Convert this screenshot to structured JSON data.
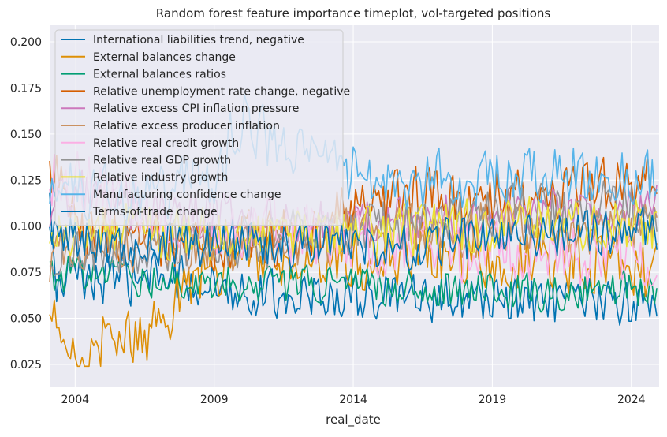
{
  "chart_data": {
    "type": "line",
    "title": "Random forest feature importance timeplot, vol-targeted positions",
    "xlabel": "real_date",
    "ylabel": "",
    "xlim": [
      "2003-02-01",
      "2024-12-31"
    ],
    "ylim": [
      0.013,
      0.209
    ],
    "x_ticks": [
      "2004-01-01",
      "2009-01-01",
      "2014-01-01",
      "2019-01-01",
      "2024-01-01"
    ],
    "x_tick_labels": [
      "2004",
      "2009",
      "2014",
      "2019",
      "2024"
    ],
    "y_ticks": [
      0.025,
      0.05,
      0.075,
      0.1,
      0.125,
      0.15,
      0.175,
      0.2
    ],
    "y_tick_labels": [
      "0.025",
      "0.050",
      "0.075",
      "0.100",
      "0.125",
      "0.150",
      "0.175",
      "0.200"
    ],
    "grid": true,
    "legend_position": "upper-left",
    "x_start": "2003-02",
    "x_frequency": "monthly",
    "series": [
      {
        "name": "International liabilities trend, negative",
        "color": "#0173b2",
        "anchors": [
          [
            2003.1,
            0.117
          ],
          [
            2003.3,
            0.065
          ],
          [
            2004,
            0.075
          ],
          [
            2005,
            0.07
          ],
          [
            2007,
            0.072
          ],
          [
            2009,
            0.068
          ],
          [
            2011,
            0.063
          ],
          [
            2014,
            0.062
          ],
          [
            2016,
            0.06
          ],
          [
            2019,
            0.06
          ],
          [
            2021,
            0.058
          ],
          [
            2023,
            0.058
          ],
          [
            2025,
            0.058
          ]
        ],
        "noise": 0.009,
        "max": 0.118
      },
      {
        "name": "External balances change",
        "color": "#de8f05",
        "anchors": [
          [
            2003.1,
            0.04
          ],
          [
            2003.3,
            0.05
          ],
          [
            2003.5,
            0.036
          ],
          [
            2004,
            0.025
          ],
          [
            2004.5,
            0.03
          ],
          [
            2005,
            0.04
          ],
          [
            2006,
            0.038
          ],
          [
            2007,
            0.046
          ],
          [
            2008,
            0.07
          ],
          [
            2008.9,
            0.08
          ],
          [
            2009.5,
            0.078
          ],
          [
            2011,
            0.08
          ],
          [
            2014,
            0.082
          ],
          [
            2017,
            0.085
          ],
          [
            2020,
            0.085
          ],
          [
            2023,
            0.08
          ],
          [
            2025,
            0.075
          ]
        ],
        "noise": 0.012,
        "min": 0.024
      },
      {
        "name": "External balances ratios",
        "color": "#029e73",
        "anchors": [
          [
            2003.1,
            0.072
          ],
          [
            2004,
            0.075
          ],
          [
            2006,
            0.072
          ],
          [
            2009,
            0.07
          ],
          [
            2012,
            0.068
          ],
          [
            2015,
            0.068
          ],
          [
            2018,
            0.066
          ],
          [
            2021,
            0.064
          ],
          [
            2025,
            0.066
          ]
        ],
        "noise": 0.007
      },
      {
        "name": "Relative unemployment rate change, negative",
        "color": "#d55e00",
        "anchors": [
          [
            2003.1,
            0.12
          ],
          [
            2003.3,
            0.138
          ],
          [
            2004,
            0.1
          ],
          [
            2006,
            0.092
          ],
          [
            2009,
            0.09
          ],
          [
            2012,
            0.095
          ],
          [
            2014,
            0.11
          ],
          [
            2016,
            0.115
          ],
          [
            2019,
            0.118
          ],
          [
            2022,
            0.12
          ],
          [
            2025,
            0.125
          ]
        ],
        "noise": 0.011
      },
      {
        "name": "Relative excess CPI inflation pressure",
        "color": "#cc78bc",
        "anchors": [
          [
            2003.1,
            0.11
          ],
          [
            2004,
            0.12
          ],
          [
            2006,
            0.112
          ],
          [
            2009,
            0.105
          ],
          [
            2012,
            0.102
          ],
          [
            2015,
            0.105
          ],
          [
            2018,
            0.105
          ],
          [
            2021,
            0.108
          ],
          [
            2025,
            0.11
          ]
        ],
        "noise": 0.009
      },
      {
        "name": "Relative excess producer inflation",
        "color": "#ca9161",
        "anchors": [
          [
            2003.1,
            0.08
          ],
          [
            2004,
            0.092
          ],
          [
            2006,
            0.09
          ],
          [
            2009,
            0.088
          ],
          [
            2012,
            0.09
          ],
          [
            2015,
            0.1
          ],
          [
            2018,
            0.098
          ],
          [
            2021,
            0.1
          ],
          [
            2025,
            0.098
          ]
        ],
        "noise": 0.01
      },
      {
        "name": "Relative real credit growth",
        "color": "#fbafe4",
        "anchors": [
          [
            2003.1,
            0.13
          ],
          [
            2004,
            0.125
          ],
          [
            2006,
            0.11
          ],
          [
            2009,
            0.1
          ],
          [
            2012,
            0.095
          ],
          [
            2015,
            0.09
          ],
          [
            2018,
            0.088
          ],
          [
            2021,
            0.085
          ],
          [
            2025,
            0.08
          ]
        ],
        "noise": 0.012
      },
      {
        "name": "Relative real GDP growth",
        "color": "#949494",
        "anchors": [
          [
            2003.1,
            0.085
          ],
          [
            2004,
            0.09
          ],
          [
            2006,
            0.088
          ],
          [
            2009,
            0.09
          ],
          [
            2012,
            0.095
          ],
          [
            2015,
            0.1
          ],
          [
            2018,
            0.105
          ],
          [
            2021,
            0.11
          ],
          [
            2025,
            0.11
          ]
        ],
        "noise": 0.01
      },
      {
        "name": "Relative industry growth",
        "color": "#ece133",
        "anchors": [
          [
            2003.1,
            0.095
          ],
          [
            2004,
            0.1
          ],
          [
            2006,
            0.098
          ],
          [
            2009,
            0.095
          ],
          [
            2012,
            0.095
          ],
          [
            2015,
            0.098
          ],
          [
            2018,
            0.1
          ],
          [
            2021,
            0.102
          ],
          [
            2025,
            0.1
          ]
        ],
        "noise": 0.01
      },
      {
        "name": "Manufacturing confidence change",
        "color": "#56b4e9",
        "anchors": [
          [
            2003.1,
            0.115
          ],
          [
            2004,
            0.12
          ],
          [
            2006,
            0.118
          ],
          [
            2009,
            0.125
          ],
          [
            2010,
            0.16
          ],
          [
            2011,
            0.145
          ],
          [
            2012,
            0.14
          ],
          [
            2014,
            0.128
          ],
          [
            2016,
            0.125
          ],
          [
            2019,
            0.125
          ],
          [
            2021,
            0.128
          ],
          [
            2025,
            0.125
          ]
        ],
        "noise": 0.011
      },
      {
        "name": "Terms-of-trade change",
        "color": "#0173b2",
        "anchors": [
          [
            2003.1,
            0.1
          ],
          [
            2004,
            0.095
          ],
          [
            2006,
            0.09
          ],
          [
            2009,
            0.09
          ],
          [
            2012,
            0.088
          ],
          [
            2015,
            0.09
          ],
          [
            2018,
            0.092
          ],
          [
            2021,
            0.095
          ],
          [
            2025,
            0.098
          ]
        ],
        "noise": 0.009
      }
    ]
  }
}
